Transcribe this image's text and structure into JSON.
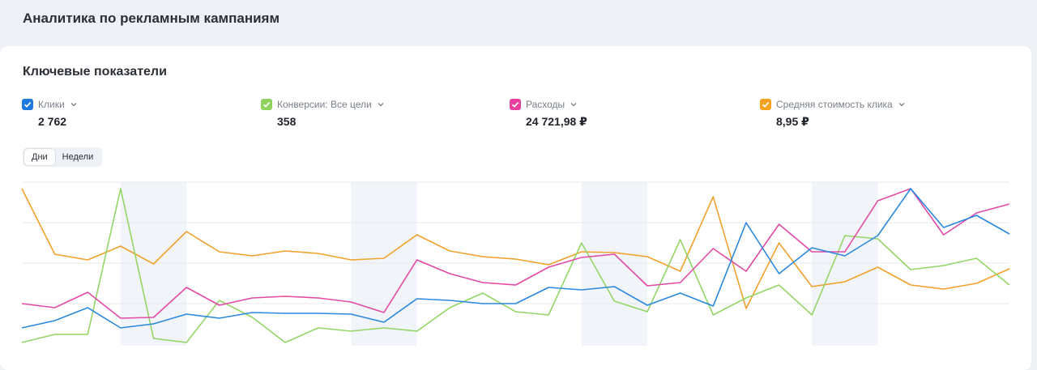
{
  "header": {
    "title": "Аналитика по рекламным кампаниям"
  },
  "card": {
    "title": "Ключевые показатели",
    "metrics": [
      {
        "label": "Клики",
        "value": "2 762",
        "color": "#1f7ae0"
      },
      {
        "label": "Конверсии: Все цели",
        "value": "358",
        "color": "#8fd35e"
      },
      {
        "label": "Расходы",
        "value": "24 721,98 ₽",
        "color": "#e8409f"
      },
      {
        "label": "Средняя стоимость клика",
        "value": "8,95 ₽",
        "color": "#f4a21f"
      }
    ],
    "toggle": [
      "Дни",
      "Недели"
    ]
  },
  "chart_data": {
    "type": "line",
    "categories": [
      null,
      null,
      null,
      null,
      null,
      null,
      null,
      null,
      null,
      null,
      null,
      null,
      null,
      null,
      null,
      null,
      null,
      null,
      null,
      null,
      null,
      null,
      null,
      null,
      null,
      null,
      null,
      null,
      null,
      null,
      null
    ],
    "ylim": [
      0,
      100
    ],
    "grid": true,
    "series": [
      {
        "name": "Средняя стоимость клика",
        "color": "#f2a12e",
        "values": [
          96,
          55.5,
          52,
          60.5,
          49.5,
          69.5,
          57,
          54.5,
          57.5,
          56,
          52,
          53,
          67.5,
          57.5,
          54,
          52.5,
          49,
          57,
          56.5,
          54,
          45,
          91,
          22,
          62.5,
          35.5,
          38.5,
          47.5,
          36.5,
          34,
          37.5,
          46.5
        ]
      },
      {
        "name": "Конверсии: Все цели",
        "color": "#93d667",
        "values": [
          1,
          6,
          6,
          96,
          3.5,
          1,
          27,
          16.5,
          1,
          10,
          8,
          10,
          8,
          22.5,
          31.5,
          20,
          18,
          62.5,
          26.5,
          20,
          64.5,
          18,
          28.5,
          36.5,
          18,
          67,
          65,
          46,
          48.5,
          53,
          36.5
        ]
      },
      {
        "name": "Расходы",
        "color": "#e34aa6",
        "values": [
          25,
          22.5,
          32,
          16,
          16.5,
          35,
          24,
          28.5,
          29.5,
          28.5,
          26,
          19.5,
          52,
          43.5,
          38,
          36.5,
          47.5,
          53.5,
          55.5,
          36,
          38,
          59,
          45,
          74,
          57,
          57,
          88.5,
          96,
          67.5,
          81,
          86.5
        ]
      },
      {
        "name": "Клики",
        "color": "#2b88df",
        "values": [
          10,
          14.5,
          22.5,
          10,
          12.5,
          18.5,
          16,
          19.5,
          19,
          19,
          18.5,
          13.5,
          28,
          27,
          25,
          25,
          35,
          33.5,
          35.5,
          24,
          31.5,
          23.5,
          75,
          43.5,
          59.5,
          54.5,
          67,
          96,
          72,
          79.5,
          68
        ]
      }
    ]
  }
}
